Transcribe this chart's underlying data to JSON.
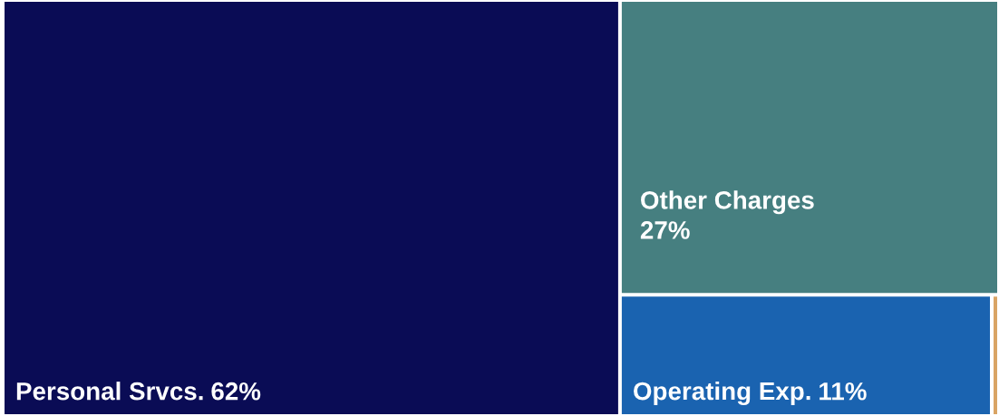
{
  "chart_data": {
    "type": "other",
    "categories": [
      "Personal Srvcs.",
      "Other Charges",
      "Operating Exp.",
      null
    ],
    "values": [
      62,
      27,
      11,
      null
    ],
    "value_labels": [
      "62%",
      "27%",
      "11%",
      null
    ],
    "colors": [
      "#0a0c55",
      "#467f80",
      "#1a63b0",
      "#d9a464"
    ]
  }
}
